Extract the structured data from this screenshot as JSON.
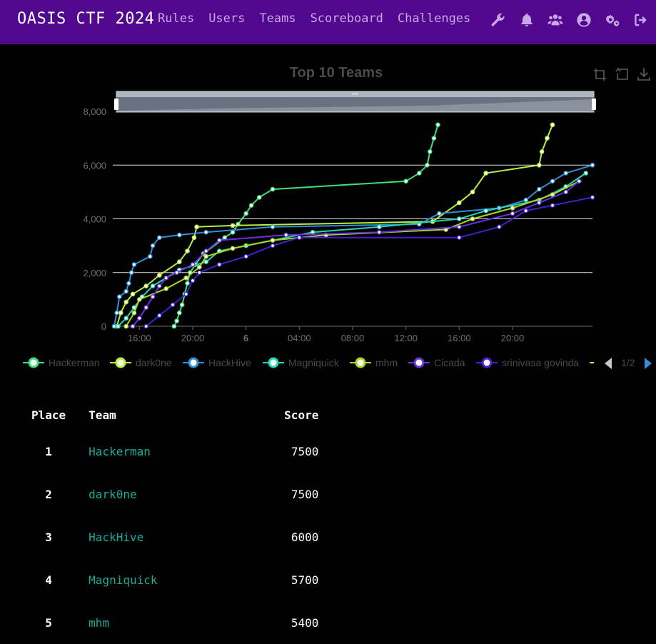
{
  "nav": {
    "brand": "OASIS CTF 2024",
    "links": [
      "Rules",
      "Users",
      "Teams",
      "Scoreboard",
      "Challenges"
    ],
    "icons": [
      "wrench-icon",
      "bell-icon",
      "users-icon",
      "user-circle-icon",
      "cogs-icon",
      "sign-out-icon"
    ]
  },
  "chart_data": {
    "type": "line",
    "title": "Top 10 Teams",
    "xlabel": "",
    "ylabel": "",
    "x_ticks": [
      "16:00",
      "20:00",
      "6",
      "04:00",
      "08:00",
      "12:00",
      "16:00",
      "20:00"
    ],
    "x_range_hours": [
      0,
      36
    ],
    "x_unit": "hours since start of competition",
    "ylim": [
      0,
      8000
    ],
    "y_ticks": [
      "0",
      "2,000",
      "4,000",
      "6,000",
      "8,000"
    ],
    "legend": {
      "position": "bottom",
      "page_indicator": "1/2",
      "visible_entries": [
        "Hackerman",
        "dark0ne",
        "HackHive",
        "Magniquick",
        "mhm",
        "Cicada",
        "srinivasa govinda"
      ]
    },
    "series": [
      {
        "name": "Hackerman",
        "color": "#3ee07a",
        "points": [
          [
            4.6,
            0
          ],
          [
            4.8,
            200
          ],
          [
            5.0,
            500
          ],
          [
            5.2,
            800
          ],
          [
            5.4,
            1200
          ],
          [
            5.6,
            1600
          ],
          [
            5.8,
            2000
          ],
          [
            6.2,
            2300
          ],
          [
            6.8,
            2700
          ],
          [
            8.4,
            3300
          ],
          [
            9.0,
            3500
          ],
          [
            9.4,
            3800
          ],
          [
            10.0,
            4200
          ],
          [
            10.4,
            4500
          ],
          [
            11.0,
            4800
          ],
          [
            12.0,
            5100
          ],
          [
            22.0,
            5400
          ],
          [
            23.0,
            5700
          ],
          [
            23.6,
            6000
          ],
          [
            23.8,
            6500
          ],
          [
            24.1,
            7000
          ],
          [
            24.4,
            7500
          ]
        ]
      },
      {
        "name": "dark0ne",
        "color": "#b8f03c",
        "points": [
          [
            0.3,
            0
          ],
          [
            0.6,
            500
          ],
          [
            1.0,
            900
          ],
          [
            1.5,
            1200
          ],
          [
            2.5,
            1500
          ],
          [
            3.5,
            1900
          ],
          [
            5.0,
            2400
          ],
          [
            5.6,
            2800
          ],
          [
            6.1,
            3300
          ],
          [
            6.3,
            3700
          ],
          [
            9.0,
            3750
          ],
          [
            24.0,
            3900
          ],
          [
            26.0,
            4600
          ],
          [
            27.0,
            5000
          ],
          [
            28.0,
            5700
          ],
          [
            32.0,
            6000
          ],
          [
            32.2,
            6500
          ],
          [
            32.6,
            7000
          ],
          [
            33.0,
            7500
          ]
        ]
      },
      {
        "name": "HackHive",
        "color": "#2f8fd8",
        "points": [
          [
            0.1,
            0
          ],
          [
            0.3,
            500
          ],
          [
            0.5,
            1100
          ],
          [
            1.0,
            1300
          ],
          [
            1.2,
            1600
          ],
          [
            1.4,
            2000
          ],
          [
            1.6,
            2300
          ],
          [
            2.8,
            2600
          ],
          [
            3.0,
            3000
          ],
          [
            3.5,
            3300
          ],
          [
            5.0,
            3400
          ],
          [
            7.0,
            3500
          ],
          [
            12.0,
            3700
          ],
          [
            23.0,
            3800
          ],
          [
            24.5,
            4200
          ],
          [
            29.0,
            4400
          ],
          [
            31.0,
            4700
          ],
          [
            32.0,
            5100
          ],
          [
            33.0,
            5400
          ],
          [
            34.0,
            5700
          ],
          [
            36.0,
            6000
          ]
        ]
      },
      {
        "name": "Magniquick",
        "color": "#22d8b6",
        "points": [
          [
            0.4,
            0
          ],
          [
            1.0,
            300
          ],
          [
            1.6,
            700
          ],
          [
            2.2,
            1100
          ],
          [
            3.0,
            1500
          ],
          [
            4.0,
            1800
          ],
          [
            5.0,
            2100
          ],
          [
            7.0,
            2400
          ],
          [
            8.0,
            2800
          ],
          [
            10.0,
            3000
          ],
          [
            15.0,
            3500
          ],
          [
            20.0,
            3700
          ],
          [
            26.0,
            4000
          ],
          [
            28.0,
            4300
          ],
          [
            32.0,
            4700
          ],
          [
            34.0,
            5200
          ],
          [
            35.5,
            5700
          ]
        ]
      },
      {
        "name": "mhm",
        "color": "#a8d824",
        "points": [
          [
            1.0,
            0
          ],
          [
            1.6,
            500
          ],
          [
            2.0,
            1000
          ],
          [
            4.0,
            1400
          ],
          [
            5.5,
            1800
          ],
          [
            6.5,
            2200
          ],
          [
            7.0,
            2600
          ],
          [
            9.0,
            2900
          ],
          [
            12.0,
            3200
          ],
          [
            16.0,
            3400
          ],
          [
            25.0,
            3600
          ],
          [
            27.0,
            4000
          ],
          [
            30.0,
            4400
          ],
          [
            33.0,
            4900
          ],
          [
            35.0,
            5400
          ]
        ]
      },
      {
        "name": "Cicada",
        "color": "#6a2fe0",
        "points": [
          [
            1.5,
            0
          ],
          [
            2.0,
            300
          ],
          [
            2.5,
            700
          ],
          [
            3.0,
            1100
          ],
          [
            3.5,
            1500
          ],
          [
            4.0,
            1800
          ],
          [
            4.8,
            2000
          ],
          [
            6.0,
            2300
          ],
          [
            7.0,
            2800
          ],
          [
            8.0,
            3200
          ],
          [
            13.0,
            3400
          ],
          [
            20.0,
            3500
          ],
          [
            26.0,
            3700
          ],
          [
            30.0,
            4200
          ],
          [
            32.0,
            4600
          ],
          [
            34.0,
            5000
          ],
          [
            35.0,
            5400
          ]
        ]
      },
      {
        "name": "srinivasa govinda",
        "color": "#4420d0",
        "points": [
          [
            2.5,
            0
          ],
          [
            3.5,
            400
          ],
          [
            4.5,
            800
          ],
          [
            5.5,
            1200
          ],
          [
            6.0,
            1700
          ],
          [
            6.5,
            2000
          ],
          [
            8.0,
            2300
          ],
          [
            10.0,
            2600
          ],
          [
            12.0,
            3000
          ],
          [
            14.0,
            3300
          ],
          [
            26.0,
            3300
          ],
          [
            29.0,
            3700
          ],
          [
            31.0,
            4300
          ],
          [
            33.0,
            4500
          ],
          [
            36.0,
            4800
          ]
        ]
      }
    ]
  },
  "table": {
    "headers": [
      "Place",
      "Team",
      "Score"
    ],
    "rows": [
      {
        "place": "1",
        "team": "Hackerman",
        "score": "7500"
      },
      {
        "place": "2",
        "team": "dark0ne",
        "score": "7500"
      },
      {
        "place": "3",
        "team": "HackHive",
        "score": "6000"
      },
      {
        "place": "4",
        "team": "Magniquick",
        "score": "5700"
      },
      {
        "place": "5",
        "team": "mhm",
        "score": "5400"
      }
    ]
  }
}
